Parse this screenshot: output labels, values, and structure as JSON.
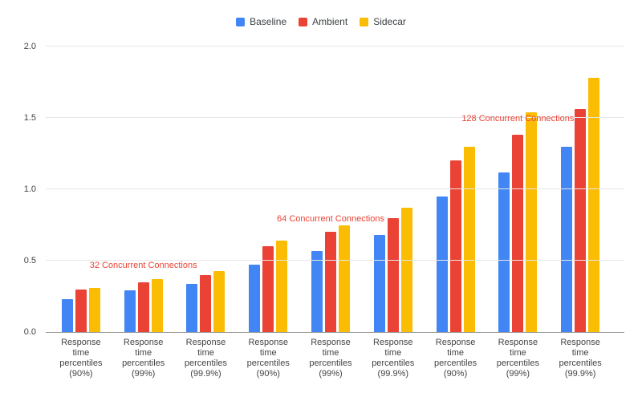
{
  "chart": {
    "background_color": "#ffffff",
    "axis_text_color": "#444444",
    "gridline_color": "#e6e6e6",
    "baseline_color": "#999999",
    "legend": {
      "items": [
        {
          "label": "Baseline",
          "color": "#4285F4"
        },
        {
          "label": "Ambient",
          "color": "#EA4335"
        },
        {
          "label": "Sidecar",
          "color": "#FBBC04"
        }
      ]
    }
  },
  "chart_data": {
    "type": "bar",
    "title": "",
    "categories": [
      "Response time percentiles (90%)",
      "Response time percentiles (99%)",
      "Response time percentiles (99.9%)",
      "Response time percentiles (90%)",
      "Response time percentiles (99%)",
      "Response time percentiles (99.9%)",
      "Response time percentiles (90%)",
      "Response time percentiles (99%)",
      "Response time percentiles (99.9%)"
    ],
    "category_lines": [
      [
        "Response",
        "time",
        "percentiles",
        "(90%)"
      ],
      [
        "Response",
        "time",
        "percentiles",
        "(99%)"
      ],
      [
        "Response",
        "time",
        "percentiles",
        "(99.9%)"
      ],
      [
        "Response",
        "time",
        "percentiles",
        "(90%)"
      ],
      [
        "Response",
        "time",
        "percentiles",
        "(99%)"
      ],
      [
        "Response",
        "time",
        "percentiles",
        "(99.9%)"
      ],
      [
        "Response",
        "time",
        "percentiles",
        "(90%)"
      ],
      [
        "Response",
        "time",
        "percentiles",
        "(99%)"
      ],
      [
        "Response",
        "time",
        "percentiles",
        "(99.9%)"
      ]
    ],
    "series": [
      {
        "name": "Baseline",
        "color": "#4285F4",
        "values": [
          0.23,
          0.29,
          0.34,
          0.47,
          0.57,
          0.68,
          0.95,
          1.12,
          1.3
        ]
      },
      {
        "name": "Ambient",
        "color": "#EA4335",
        "values": [
          0.3,
          0.35,
          0.4,
          0.6,
          0.7,
          0.8,
          1.2,
          1.38,
          1.56
        ]
      },
      {
        "name": "Sidecar",
        "color": "#FBBC04",
        "values": [
          0.31,
          0.37,
          0.43,
          0.64,
          0.75,
          0.87,
          1.3,
          1.54,
          1.78
        ]
      }
    ],
    "ylim": [
      0,
      2.0
    ],
    "yticks": [
      0.0,
      0.5,
      1.0,
      1.5,
      2.0
    ],
    "ytick_labels": [
      "0.0",
      "0.5",
      "1.0",
      "1.5",
      "2.0"
    ],
    "grid": true,
    "legend_position": "top",
    "annotation_color": "#EA4335",
    "annotations": [
      {
        "text": "32 Concurrent Connections",
        "group_index": 1,
        "y_value": 0.43
      },
      {
        "text": "64 Concurrent Connections",
        "group_index": 4,
        "y_value": 0.76
      },
      {
        "text": "128 Concurrent Connections",
        "group_index": 7,
        "y_value": 1.46
      }
    ]
  }
}
